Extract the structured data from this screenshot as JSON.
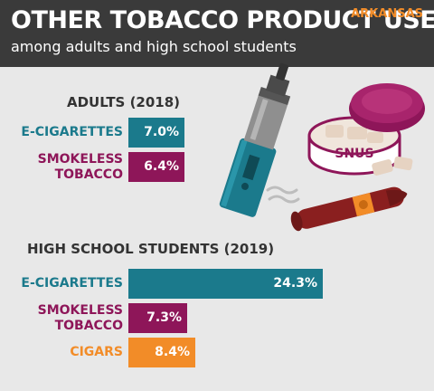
{
  "header": {
    "title": "OTHER TOBACCO PRODUCT USE",
    "subtitle": "among adults and high school students",
    "state": "ARKANSAS"
  },
  "illustration": {
    "snus_label": "SNUS"
  },
  "colors": {
    "header_bg": "#3a3a3a",
    "background": "#e8e8e8",
    "state_accent": "#f28c28",
    "e_cigarettes": "#1b7a8c",
    "smokeless_tobacco": "#8e1659",
    "cigars": "#f28c28"
  },
  "chart_data": [
    {
      "type": "bar",
      "orientation": "horizontal",
      "title": "ADULTS (2018)",
      "categories": [
        "E-CIGARETTES",
        "SMOKELESS TOBACCO"
      ],
      "category_lines": [
        [
          "E-CIGARETTES"
        ],
        [
          "SMOKELESS",
          "TOBACCO"
        ]
      ],
      "values": [
        7.0,
        6.4
      ],
      "value_labels": [
        "7.0%",
        "6.4%"
      ],
      "colors": [
        "#1b7a8c",
        "#8e1659"
      ],
      "xlim": [
        0,
        24.3
      ],
      "grid": false
    },
    {
      "type": "bar",
      "orientation": "horizontal",
      "title": "HIGH SCHOOL STUDENTS (2019)",
      "categories": [
        "E-CIGARETTES",
        "SMOKELESS TOBACCO",
        "CIGARS"
      ],
      "category_lines": [
        [
          "E-CIGARETTES"
        ],
        [
          "SMOKELESS",
          "TOBACCO"
        ],
        [
          "CIGARS"
        ]
      ],
      "values": [
        24.3,
        7.3,
        8.4
      ],
      "value_labels": [
        "24.3%",
        "7.3%",
        "8.4%"
      ],
      "colors": [
        "#1b7a8c",
        "#8e1659",
        "#f28c28"
      ],
      "xlim": [
        0,
        24.3
      ],
      "grid": false
    }
  ]
}
